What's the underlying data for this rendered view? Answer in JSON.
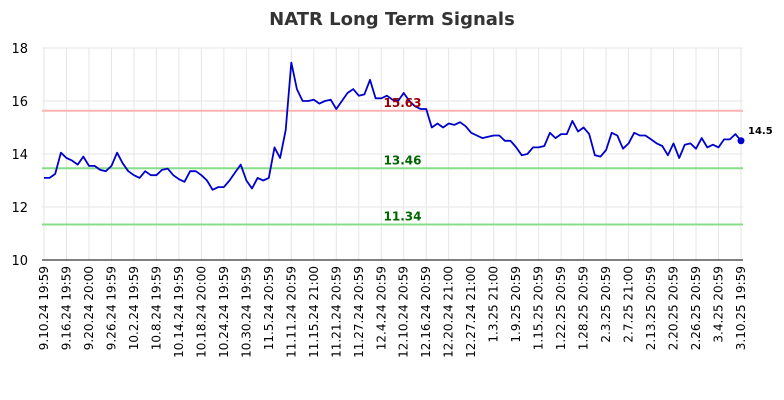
{
  "chart_data": {
    "type": "line",
    "title": "NATR Long Term Signals",
    "xlabel": "",
    "ylabel": "",
    "ylim": [
      10,
      18
    ],
    "yticks": [
      10,
      12,
      14,
      16,
      18
    ],
    "grid": true,
    "x_tick_labels": [
      "9.10.24 19:59",
      "9.16.24 19:59",
      "9.20.24 20:00",
      "9.26.24 19:59",
      "10.2.24 19:59",
      "10.8.24 19:59",
      "10.14.24 19:59",
      "10.18.24 20:00",
      "10.24.24 19:59",
      "10.30.24 19:59",
      "11.5.24 20:59",
      "11.11.24 20:59",
      "11.15.24 21:00",
      "11.21.24 20:59",
      "11.27.24 20:59",
      "12.4.24 20:59",
      "12.10.24 20:59",
      "12.16.24 20:59",
      "12.20.24 21:00",
      "12.27.24 21:00",
      "1.3.25 21:00",
      "1.9.25 20:59",
      "1.15.25 20:59",
      "1.22.25 20:59",
      "1.28.25 20:59",
      "2.3.25 20:59",
      "2.7.25 21:00",
      "2.13.25 20:59",
      "2.20.25 20:59",
      "2.26.25 20:59",
      "3.4.25 20:59",
      "3.10.25 19:59"
    ],
    "series": [
      {
        "color": "#0000cc",
        "values": [
          13.1,
          13.1,
          13.25,
          14.05,
          13.85,
          13.75,
          13.6,
          13.9,
          13.55,
          13.55,
          13.4,
          13.35,
          13.55,
          14.05,
          13.65,
          13.35,
          13.2,
          13.1,
          13.35,
          13.2,
          13.2,
          13.4,
          13.45,
          13.2,
          13.05,
          12.95,
          13.35,
          13.35,
          13.2,
          13.0,
          12.65,
          12.75,
          12.75,
          13.0,
          13.3,
          13.6,
          13.0,
          12.7,
          13.1,
          13.0,
          13.1,
          14.25,
          13.85,
          14.9,
          17.45,
          16.45,
          16.0,
          16.0,
          16.05,
          15.9,
          16.0,
          16.05,
          15.7,
          16.0,
          16.3,
          16.45,
          16.2,
          16.25,
          16.8,
          16.1,
          16.1,
          16.2,
          16.05,
          16.0,
          16.3,
          16.0,
          15.8,
          15.7,
          15.7,
          15.0,
          15.15,
          15.0,
          15.15,
          15.1,
          15.2,
          15.05,
          14.8,
          14.7,
          14.6,
          14.65,
          14.7,
          14.7,
          14.5,
          14.5,
          14.25,
          13.95,
          14.0,
          14.25,
          14.25,
          14.3,
          14.8,
          14.6,
          14.75,
          14.75,
          15.25,
          14.85,
          15.0,
          14.75,
          13.95,
          13.9,
          14.15,
          14.8,
          14.7,
          14.2,
          14.4,
          14.8,
          14.7,
          14.7,
          14.55,
          14.4,
          14.3,
          13.95,
          14.4,
          13.85,
          14.35,
          14.4,
          14.2,
          14.6,
          14.25,
          14.35,
          14.25,
          14.55,
          14.55,
          14.75,
          14.5
        ]
      }
    ],
    "signal_lines": [
      {
        "value": 15.63,
        "label": "15.63",
        "color": "#ffb3b3",
        "label_color": "#990000"
      },
      {
        "value": 13.46,
        "label": "13.46",
        "color": "#88dd88",
        "label_color": "#006600"
      },
      {
        "value": 11.34,
        "label": "11.34",
        "color": "#88dd88",
        "label_color": "#006600"
      }
    ],
    "last_value": {
      "label": "14.5",
      "value": 14.5
    }
  }
}
